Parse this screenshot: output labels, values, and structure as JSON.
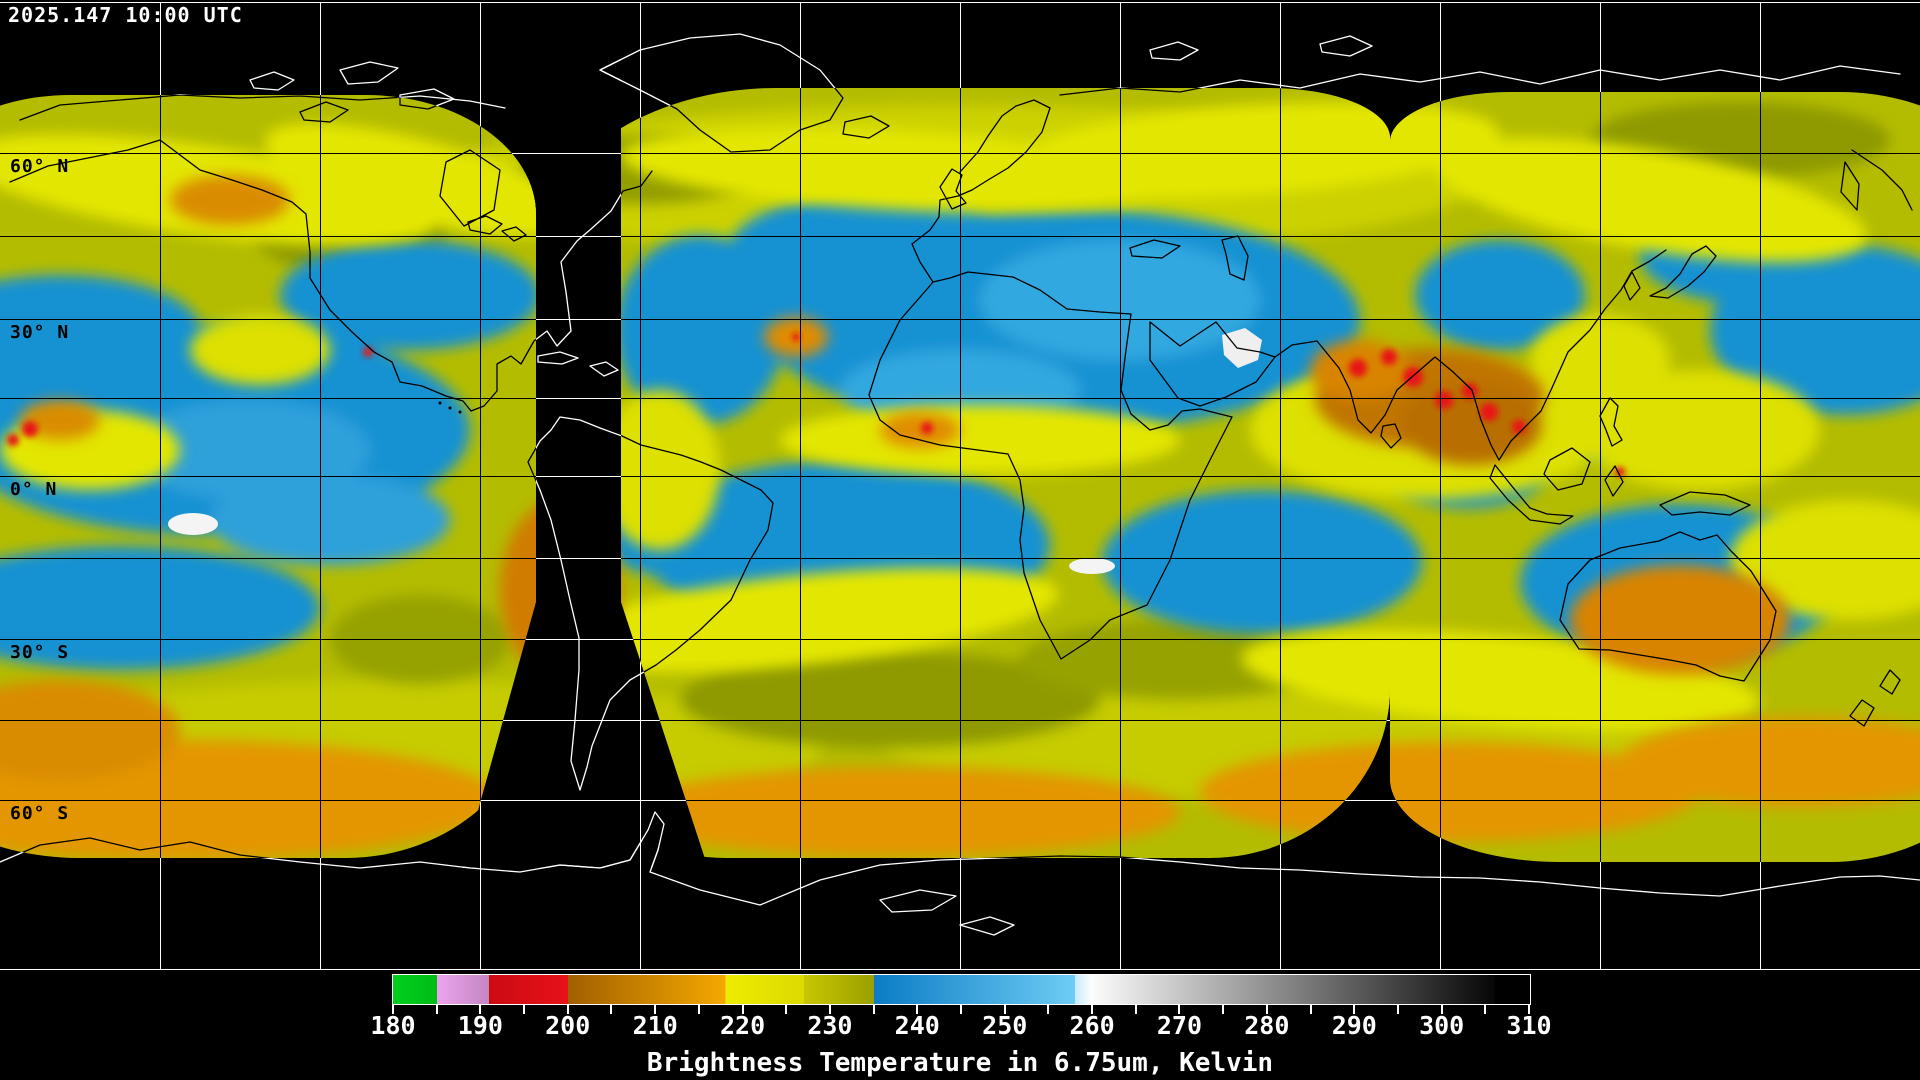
{
  "header": {
    "timestamp": "2025.147 10:00 UTC"
  },
  "map": {
    "lat_labels": [
      {
        "text": "60° N"
      },
      {
        "text": "30° N"
      },
      {
        "text": "0° N"
      },
      {
        "text": "30° S"
      },
      {
        "text": "60° S"
      }
    ],
    "colors": {
      "background": "#000000",
      "grid_over_nodata": "#ffffff",
      "grid_over_data": "#000000",
      "coast_over_nodata": "#ffffff",
      "coast_over_data": "#000000"
    }
  },
  "colorbar": {
    "title": "Brightness Temperature in 6.75um, Kelvin",
    "min": 180,
    "max": 310,
    "minor_tick_step": 5,
    "tick_labels": [
      "180",
      "190",
      "200",
      "210",
      "220",
      "230",
      "240",
      "250",
      "260",
      "270",
      "280",
      "290",
      "300",
      "310"
    ],
    "gradient_segments": [
      {
        "from": 180,
        "to": 185,
        "start": "#00d01e",
        "end": "#00bc16"
      },
      {
        "from": 185,
        "to": 191,
        "start": "#eea4ee",
        "end": "#c286c2"
      },
      {
        "from": 191,
        "to": 200,
        "start": "#cc0a12",
        "end": "#e61218"
      },
      {
        "from": 200,
        "to": 218,
        "start": "#a06000",
        "end": "#f4a800"
      },
      {
        "from": 218,
        "to": 227,
        "start": "#eeec00",
        "end": "#dcda00"
      },
      {
        "from": 227,
        "to": 235,
        "start": "#c8c600",
        "end": "#9aa000"
      },
      {
        "from": 235,
        "to": 258,
        "start": "#0b7cc4",
        "end": "#6fccf4"
      },
      {
        "from": 258,
        "to": 260,
        "start": "#c8ecfc",
        "end": "#ffffff"
      },
      {
        "from": 260,
        "to": 306,
        "start": "#fbfbfb",
        "end": "#060606"
      },
      {
        "from": 306,
        "to": 310,
        "start": "#000000",
        "end": "#000000"
      }
    ]
  }
}
